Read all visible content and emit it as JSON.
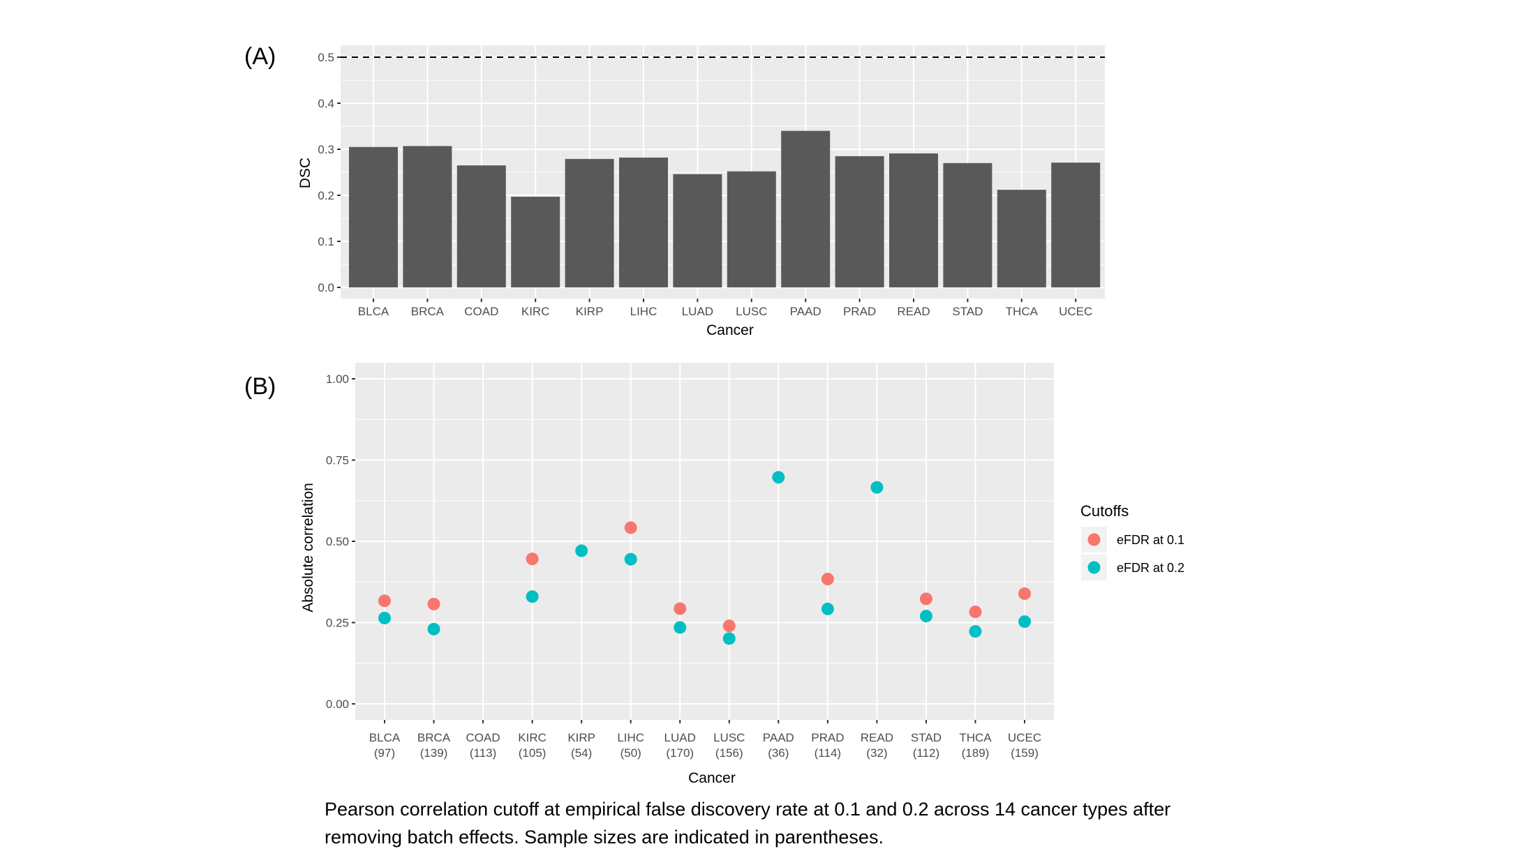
{
  "caption": "Pearson correlation cutoff at empirical false discovery rate at 0.1 and 0.2 across 14 cancer types after removing batch effects. Sample sizes are indicated in parentheses.",
  "chart_data": [
    {
      "panel_label": "(A)",
      "type": "bar",
      "title": "",
      "xlabel": "Cancer",
      "ylabel": "DSC",
      "categories": [
        "BLCA",
        "BRCA",
        "COAD",
        "KIRC",
        "KIRP",
        "LIHC",
        "LUAD",
        "LUSC",
        "PAAD",
        "PRAD",
        "READ",
        "STAD",
        "THCA",
        "UCEC"
      ],
      "values": [
        0.305,
        0.307,
        0.265,
        0.197,
        0.279,
        0.282,
        0.246,
        0.252,
        0.34,
        0.285,
        0.291,
        0.27,
        0.212,
        0.271
      ],
      "ylim": [
        0,
        0.52
      ],
      "yticks": [
        "0.0",
        "0.1",
        "0.2",
        "0.3",
        "0.4",
        "0.5"
      ],
      "reference_line": {
        "y": 0.5,
        "style": "dashed"
      },
      "grid": true,
      "bar_color": "#595959"
    },
    {
      "panel_label": "(B)",
      "type": "scatter",
      "title": "",
      "xlabel": "Cancer",
      "ylabel": "Absolute correlation",
      "categories": [
        "BLCA",
        "BRCA",
        "COAD",
        "KIRC",
        "KIRP",
        "LIHC",
        "LUAD",
        "LUSC",
        "PAAD",
        "PRAD",
        "READ",
        "STAD",
        "THCA",
        "UCEC"
      ],
      "sample_sizes": [
        "(97)",
        "(139)",
        "(113)",
        "(105)",
        "(54)",
        "(50)",
        "(170)",
        "(156)",
        "(36)",
        "(114)",
        "(32)",
        "(112)",
        "(189)",
        "(159)"
      ],
      "ylim": [
        0,
        1
      ],
      "yticks": [
        "0.00",
        "0.25",
        "0.50",
        "0.75",
        "1.00"
      ],
      "grid": true,
      "legend": {
        "title": "Cutoffs",
        "position": "right"
      },
      "series": [
        {
          "name": "eFDR at 0.1",
          "color": "#F8766D",
          "values": [
            0.317,
            0.307,
            null,
            0.446,
            null,
            0.542,
            0.293,
            0.24,
            null,
            0.384,
            null,
            0.323,
            0.283,
            0.339
          ]
        },
        {
          "name": "eFDR at 0.2",
          "color": "#00BFC4",
          "values": [
            0.264,
            0.23,
            null,
            0.33,
            0.471,
            0.445,
            0.235,
            0.201,
            0.697,
            0.292,
            0.666,
            0.27,
            0.223,
            0.253
          ]
        }
      ]
    }
  ]
}
